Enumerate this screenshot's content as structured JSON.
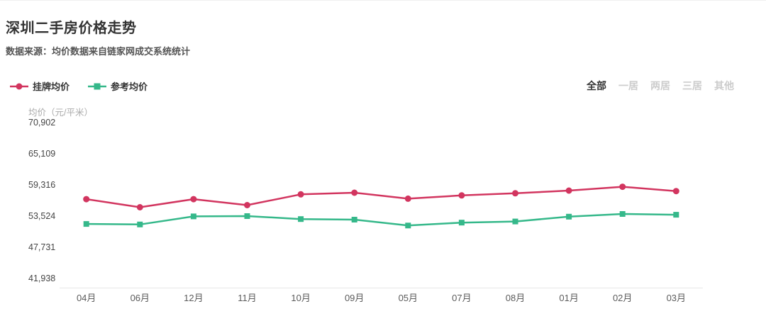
{
  "header": {
    "title": "深圳二手房价格走势",
    "subtitle": "数据来源：均价数据来自链家网成交系统统计"
  },
  "filters": {
    "items": [
      {
        "label": "全部",
        "active": true
      },
      {
        "label": "一居",
        "active": false
      },
      {
        "label": "两居",
        "active": false
      },
      {
        "label": "三居",
        "active": false
      },
      {
        "label": "其他",
        "active": false
      }
    ]
  },
  "chart_data": {
    "type": "line",
    "title": "深圳二手房价格走势",
    "xlabel": "",
    "ylabel": "均价（元/平米）",
    "categories": [
      "04月",
      "06月",
      "12月",
      "11月",
      "10月",
      "09月",
      "05月",
      "07月",
      "08月",
      "01月",
      "02月",
      "03月"
    ],
    "y_ticks": [
      70902,
      65109,
      59316,
      53524,
      47731,
      41938
    ],
    "ylim": [
      41938,
      70902
    ],
    "grid": false,
    "legend_position": "top-left",
    "series": [
      {
        "name": "挂牌均价",
        "color": "#d2355f",
        "marker": "circle",
        "values": [
          56800,
          55300,
          56800,
          55700,
          57700,
          58000,
          56900,
          57500,
          57900,
          58400,
          59100,
          58300
        ]
      },
      {
        "name": "参考均价",
        "color": "#35b88a",
        "marker": "square",
        "values": [
          52200,
          52100,
          53600,
          53650,
          53100,
          53000,
          51900,
          52450,
          52650,
          53550,
          54050,
          53900
        ]
      }
    ]
  }
}
